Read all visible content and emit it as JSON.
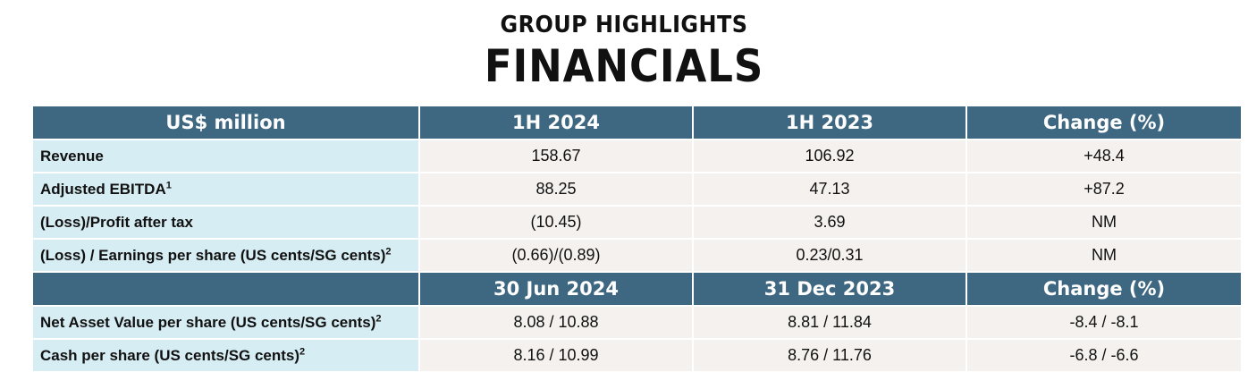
{
  "header": {
    "subtitle": "GROUP HIGHLIGHTS",
    "title": "FINANCIALS"
  },
  "section1": {
    "columns": [
      "US$ million",
      "1H 2024",
      "1H 2023",
      "Change (%)"
    ],
    "rows": [
      {
        "label": "Revenue",
        "note": "",
        "v1": "158.67",
        "v2": "106.92",
        "change": "+48.4"
      },
      {
        "label": "Adjusted EBITDA",
        "note": "1",
        "v1": "88.25",
        "v2": "47.13",
        "change": "+87.2"
      },
      {
        "label": "(Loss)/Profit after tax",
        "note": "",
        "v1": "(10.45)",
        "v2": "3.69",
        "change": "NM"
      },
      {
        "label": "(Loss) / Earnings per share (US cents/SG cents)",
        "note": "2",
        "v1": "(0.66)/(0.89)",
        "v2": "0.23/0.31",
        "change": "NM"
      }
    ]
  },
  "section2": {
    "columns": [
      "",
      "30 Jun 2024",
      "31 Dec 2023",
      "Change (%)"
    ],
    "rows": [
      {
        "label": "Net Asset Value per share (US cents/SG cents)",
        "note": "2",
        "v1": "8.08 / 10.88",
        "v2": "8.81 / 11.84",
        "change": "-8.4 / -8.1"
      },
      {
        "label": "Cash per share (US cents/SG cents)",
        "note": "2",
        "v1": "8.16 / 10.99",
        "v2": "8.76 / 11.76",
        "change": "-6.8 / -6.6"
      }
    ]
  },
  "colors": {
    "header_bg": "#3e6781",
    "label_bg": "#d6edf4",
    "value_bg": "#f4f1ee",
    "text": "#111111"
  }
}
